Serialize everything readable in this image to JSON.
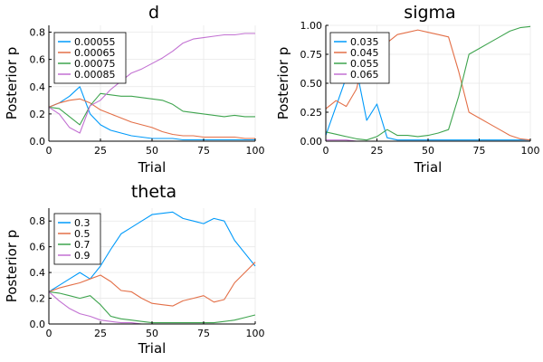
{
  "chart_data": [
    {
      "type": "line",
      "title": "d",
      "xlabel": "Trial",
      "ylabel": "Posterior p",
      "xlim": [
        0,
        100
      ],
      "ylim": [
        0,
        0.85
      ],
      "xticks": [
        0,
        25,
        50,
        75,
        100
      ],
      "yticks": [
        0.0,
        0.2,
        0.4,
        0.6,
        0.8
      ],
      "ytick_labels": [
        "0.0",
        "0.2",
        "0.4",
        "0.6",
        "0.8"
      ],
      "legend": "top-left",
      "x": [
        0,
        5,
        10,
        15,
        20,
        25,
        30,
        35,
        40,
        45,
        50,
        55,
        60,
        65,
        70,
        75,
        80,
        85,
        90,
        95,
        100
      ],
      "series": [
        {
          "name": "0.00055",
          "color": "#009AFA",
          "values": [
            0.25,
            0.28,
            0.33,
            0.4,
            0.2,
            0.12,
            0.08,
            0.06,
            0.04,
            0.03,
            0.02,
            0.02,
            0.02,
            0.01,
            0.01,
            0.01,
            0.01,
            0.01,
            0.01,
            0.01,
            0.01
          ]
        },
        {
          "name": "0.00065",
          "color": "#E36F47",
          "values": [
            0.25,
            0.28,
            0.3,
            0.31,
            0.28,
            0.23,
            0.2,
            0.17,
            0.14,
            0.12,
            0.1,
            0.07,
            0.05,
            0.04,
            0.04,
            0.03,
            0.03,
            0.03,
            0.03,
            0.02,
            0.02
          ]
        },
        {
          "name": "0.00075",
          "color": "#3EA44E",
          "values": [
            0.25,
            0.24,
            0.18,
            0.12,
            0.26,
            0.35,
            0.34,
            0.33,
            0.33,
            0.32,
            0.31,
            0.3,
            0.27,
            0.22,
            0.21,
            0.2,
            0.19,
            0.18,
            0.19,
            0.18,
            0.18
          ]
        },
        {
          "name": "0.00085",
          "color": "#C271D2",
          "values": [
            0.25,
            0.2,
            0.1,
            0.06,
            0.26,
            0.3,
            0.38,
            0.44,
            0.5,
            0.53,
            0.57,
            0.61,
            0.66,
            0.72,
            0.75,
            0.76,
            0.77,
            0.78,
            0.78,
            0.79,
            0.79
          ]
        }
      ]
    },
    {
      "type": "line",
      "title": "sigma",
      "xlabel": "Trial",
      "ylabel": "Posterior p",
      "xlim": [
        0,
        100
      ],
      "ylim": [
        0,
        1.0
      ],
      "xticks": [
        0,
        25,
        50,
        75,
        100
      ],
      "yticks": [
        0.0,
        0.25,
        0.5,
        0.75,
        1.0
      ],
      "ytick_labels": [
        "0.00",
        "0.25",
        "0.50",
        "0.75",
        "1.00"
      ],
      "legend": "top-left",
      "x": [
        0,
        5,
        10,
        15,
        20,
        25,
        30,
        35,
        40,
        45,
        50,
        55,
        60,
        65,
        70,
        75,
        80,
        85,
        90,
        95,
        100
      ],
      "series": [
        {
          "name": "0.035",
          "color": "#009AFA",
          "values": [
            0.05,
            0.3,
            0.55,
            0.62,
            0.18,
            0.32,
            0.03,
            0.01,
            0.01,
            0.01,
            0.01,
            0.01,
            0.01,
            0.01,
            0.01,
            0.01,
            0.01,
            0.01,
            0.01,
            0.01,
            0.01
          ]
        },
        {
          "name": "0.045",
          "color": "#E36F47",
          "values": [
            0.28,
            0.35,
            0.3,
            0.45,
            0.8,
            0.66,
            0.85,
            0.92,
            0.94,
            0.96,
            0.94,
            0.92,
            0.9,
            0.6,
            0.25,
            0.2,
            0.15,
            0.1,
            0.05,
            0.02,
            0.01
          ]
        },
        {
          "name": "0.055",
          "color": "#3EA44E",
          "values": [
            0.08,
            0.06,
            0.04,
            0.02,
            0.01,
            0.04,
            0.1,
            0.05,
            0.05,
            0.04,
            0.05,
            0.07,
            0.1,
            0.39,
            0.75,
            0.8,
            0.85,
            0.9,
            0.95,
            0.98,
            0.99
          ]
        },
        {
          "name": "0.065",
          "color": "#C271D2",
          "values": [
            0.01,
            0.01,
            0.01,
            0.0,
            0.0,
            0.0,
            0.0,
            0.0,
            0.0,
            0.0,
            0.0,
            0.0,
            0.0,
            0.0,
            0.0,
            0.0,
            0.0,
            0.0,
            0.0,
            0.0,
            0.0
          ]
        }
      ]
    },
    {
      "type": "line",
      "title": "theta",
      "xlabel": "Trial",
      "ylabel": "Posterior p",
      "xlim": [
        0,
        100
      ],
      "ylim": [
        0,
        0.9
      ],
      "xticks": [
        0,
        25,
        50,
        75,
        100
      ],
      "yticks": [
        0.0,
        0.2,
        0.4,
        0.6,
        0.8
      ],
      "ytick_labels": [
        "0.0",
        "0.2",
        "0.4",
        "0.6",
        "0.8"
      ],
      "legend": "top-left",
      "x": [
        0,
        5,
        10,
        15,
        20,
        25,
        30,
        35,
        40,
        45,
        50,
        55,
        60,
        65,
        70,
        75,
        80,
        85,
        90,
        95,
        100
      ],
      "series": [
        {
          "name": "0.3",
          "color": "#009AFA",
          "values": [
            0.25,
            0.3,
            0.35,
            0.4,
            0.35,
            0.45,
            0.58,
            0.7,
            0.75,
            0.8,
            0.85,
            0.86,
            0.87,
            0.82,
            0.8,
            0.78,
            0.82,
            0.8,
            0.65,
            0.55,
            0.45
          ]
        },
        {
          "name": "0.5",
          "color": "#E36F47",
          "values": [
            0.25,
            0.28,
            0.3,
            0.32,
            0.35,
            0.38,
            0.33,
            0.26,
            0.25,
            0.2,
            0.16,
            0.15,
            0.14,
            0.18,
            0.2,
            0.22,
            0.17,
            0.19,
            0.32,
            0.4,
            0.48
          ]
        },
        {
          "name": "0.7",
          "color": "#3EA44E",
          "values": [
            0.25,
            0.24,
            0.22,
            0.2,
            0.22,
            0.15,
            0.06,
            0.04,
            0.03,
            0.02,
            0.01,
            0.01,
            0.01,
            0.01,
            0.01,
            0.01,
            0.01,
            0.02,
            0.03,
            0.05,
            0.07
          ]
        },
        {
          "name": "0.9",
          "color": "#C271D2",
          "values": [
            0.25,
            0.18,
            0.12,
            0.08,
            0.06,
            0.03,
            0.02,
            0.01,
            0.01,
            0.0,
            0.0,
            0.0,
            0.0,
            0.0,
            0.0,
            0.0,
            0.0,
            0.0,
            0.0,
            0.0,
            0.0
          ]
        }
      ]
    }
  ]
}
